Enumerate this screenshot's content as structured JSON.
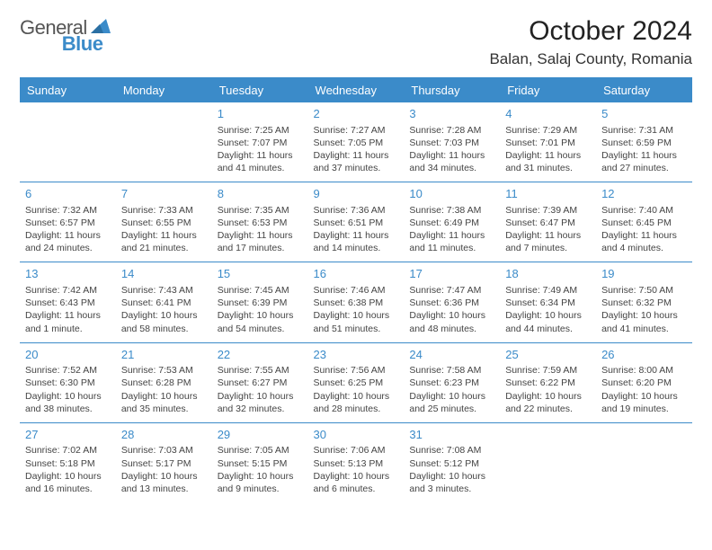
{
  "logo": {
    "textA": "General",
    "textB": "Blue"
  },
  "title": "October 2024",
  "location": "Balan, Salaj County, Romania",
  "colors": {
    "accent": "#3b8bc9",
    "text": "#444",
    "bg": "#ffffff"
  },
  "dayHeaders": [
    "Sunday",
    "Monday",
    "Tuesday",
    "Wednesday",
    "Thursday",
    "Friday",
    "Saturday"
  ],
  "weeks": [
    [
      null,
      null,
      {
        "n": "1",
        "sr": "7:25 AM",
        "ss": "7:07 PM",
        "dl": "11 hours and 41 minutes."
      },
      {
        "n": "2",
        "sr": "7:27 AM",
        "ss": "7:05 PM",
        "dl": "11 hours and 37 minutes."
      },
      {
        "n": "3",
        "sr": "7:28 AM",
        "ss": "7:03 PM",
        "dl": "11 hours and 34 minutes."
      },
      {
        "n": "4",
        "sr": "7:29 AM",
        "ss": "7:01 PM",
        "dl": "11 hours and 31 minutes."
      },
      {
        "n": "5",
        "sr": "7:31 AM",
        "ss": "6:59 PM",
        "dl": "11 hours and 27 minutes."
      }
    ],
    [
      {
        "n": "6",
        "sr": "7:32 AM",
        "ss": "6:57 PM",
        "dl": "11 hours and 24 minutes."
      },
      {
        "n": "7",
        "sr": "7:33 AM",
        "ss": "6:55 PM",
        "dl": "11 hours and 21 minutes."
      },
      {
        "n": "8",
        "sr": "7:35 AM",
        "ss": "6:53 PM",
        "dl": "11 hours and 17 minutes."
      },
      {
        "n": "9",
        "sr": "7:36 AM",
        "ss": "6:51 PM",
        "dl": "11 hours and 14 minutes."
      },
      {
        "n": "10",
        "sr": "7:38 AM",
        "ss": "6:49 PM",
        "dl": "11 hours and 11 minutes."
      },
      {
        "n": "11",
        "sr": "7:39 AM",
        "ss": "6:47 PM",
        "dl": "11 hours and 7 minutes."
      },
      {
        "n": "12",
        "sr": "7:40 AM",
        "ss": "6:45 PM",
        "dl": "11 hours and 4 minutes."
      }
    ],
    [
      {
        "n": "13",
        "sr": "7:42 AM",
        "ss": "6:43 PM",
        "dl": "11 hours and 1 minute."
      },
      {
        "n": "14",
        "sr": "7:43 AM",
        "ss": "6:41 PM",
        "dl": "10 hours and 58 minutes."
      },
      {
        "n": "15",
        "sr": "7:45 AM",
        "ss": "6:39 PM",
        "dl": "10 hours and 54 minutes."
      },
      {
        "n": "16",
        "sr": "7:46 AM",
        "ss": "6:38 PM",
        "dl": "10 hours and 51 minutes."
      },
      {
        "n": "17",
        "sr": "7:47 AM",
        "ss": "6:36 PM",
        "dl": "10 hours and 48 minutes."
      },
      {
        "n": "18",
        "sr": "7:49 AM",
        "ss": "6:34 PM",
        "dl": "10 hours and 44 minutes."
      },
      {
        "n": "19",
        "sr": "7:50 AM",
        "ss": "6:32 PM",
        "dl": "10 hours and 41 minutes."
      }
    ],
    [
      {
        "n": "20",
        "sr": "7:52 AM",
        "ss": "6:30 PM",
        "dl": "10 hours and 38 minutes."
      },
      {
        "n": "21",
        "sr": "7:53 AM",
        "ss": "6:28 PM",
        "dl": "10 hours and 35 minutes."
      },
      {
        "n": "22",
        "sr": "7:55 AM",
        "ss": "6:27 PM",
        "dl": "10 hours and 32 minutes."
      },
      {
        "n": "23",
        "sr": "7:56 AM",
        "ss": "6:25 PM",
        "dl": "10 hours and 28 minutes."
      },
      {
        "n": "24",
        "sr": "7:58 AM",
        "ss": "6:23 PM",
        "dl": "10 hours and 25 minutes."
      },
      {
        "n": "25",
        "sr": "7:59 AM",
        "ss": "6:22 PM",
        "dl": "10 hours and 22 minutes."
      },
      {
        "n": "26",
        "sr": "8:00 AM",
        "ss": "6:20 PM",
        "dl": "10 hours and 19 minutes."
      }
    ],
    [
      {
        "n": "27",
        "sr": "7:02 AM",
        "ss": "5:18 PM",
        "dl": "10 hours and 16 minutes."
      },
      {
        "n": "28",
        "sr": "7:03 AM",
        "ss": "5:17 PM",
        "dl": "10 hours and 13 minutes."
      },
      {
        "n": "29",
        "sr": "7:05 AM",
        "ss": "5:15 PM",
        "dl": "10 hours and 9 minutes."
      },
      {
        "n": "30",
        "sr": "7:06 AM",
        "ss": "5:13 PM",
        "dl": "10 hours and 6 minutes."
      },
      {
        "n": "31",
        "sr": "7:08 AM",
        "ss": "5:12 PM",
        "dl": "10 hours and 3 minutes."
      },
      null,
      null
    ]
  ],
  "labels": {
    "sunrise": "Sunrise: ",
    "sunset": "Sunset: ",
    "daylight": "Daylight: "
  }
}
